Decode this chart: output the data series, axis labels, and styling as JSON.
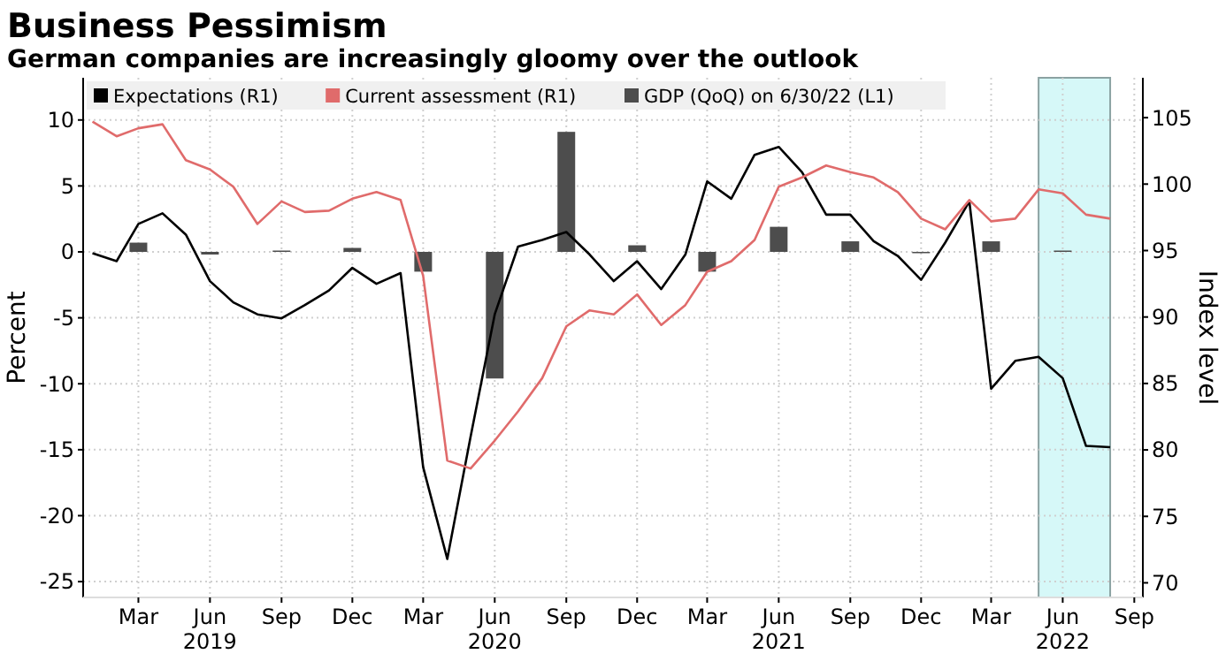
{
  "chart_data": {
    "type": "line",
    "title": "Business Pessimism",
    "subtitle": "German companies are increasingly gloomy over the outlook",
    "ylabel": "Percent",
    "y2label": "Index level",
    "x": [
      "2019-01-01",
      "2019-02-01",
      "2019-03-01",
      "2019-04-01",
      "2019-05-01",
      "2019-06-01",
      "2019-07-01",
      "2019-08-01",
      "2019-09-01",
      "2019-10-01",
      "2019-11-01",
      "2019-12-01",
      "2020-01-01",
      "2020-02-01",
      "2020-03-01",
      "2020-04-01",
      "2020-05-01",
      "2020-06-01",
      "2020-07-01",
      "2020-08-01",
      "2020-09-01",
      "2020-10-01",
      "2020-11-01",
      "2020-12-01",
      "2021-01-01",
      "2021-02-01",
      "2021-03-01",
      "2021-04-01",
      "2021-05-01",
      "2021-06-01",
      "2021-07-01",
      "2021-08-01",
      "2021-09-01",
      "2021-10-01",
      "2021-11-01",
      "2021-12-01",
      "2022-01-01",
      "2022-02-01",
      "2022-03-01",
      "2022-04-01",
      "2022-05-01",
      "2022-06-01",
      "2022-07-01",
      "2022-08-01"
    ],
    "series": [
      {
        "name": "Expectations (R1)",
        "color": "#000000",
        "axis": "y2",
        "values": [
          94.8,
          94.2,
          97.0,
          97.8,
          96.2,
          92.7,
          91.1,
          90.2,
          89.9,
          90.9,
          92.0,
          93.7,
          92.5,
          93.3,
          78.7,
          71.8,
          81.0,
          90.2,
          95.3,
          95.8,
          96.4,
          94.7,
          92.7,
          94.2,
          92.1,
          94.7,
          100.2,
          98.9,
          102.2,
          102.8,
          100.9,
          97.7,
          97.7,
          95.7,
          94.6,
          92.8,
          95.6,
          98.7,
          84.6,
          86.7,
          87.0,
          85.4,
          80.3,
          80.2
        ]
      },
      {
        "name": "Current assessment (R1)",
        "color": "#e06b6b",
        "axis": "y2",
        "values": [
          104.7,
          103.6,
          104.2,
          104.5,
          101.8,
          101.1,
          99.8,
          97.0,
          98.7,
          97.9,
          98.0,
          98.9,
          99.4,
          98.8,
          93.1,
          79.2,
          78.6,
          80.7,
          82.9,
          85.4,
          89.3,
          90.5,
          90.2,
          91.7,
          89.4,
          90.9,
          93.4,
          94.2,
          95.8,
          99.8,
          100.5,
          101.4,
          100.9,
          100.5,
          99.4,
          97.4,
          96.6,
          98.8,
          97.2,
          97.4,
          99.6,
          99.3,
          97.7,
          97.4
        ]
      },
      {
        "name": "GDP (QoQ) on 6/30/22 (L1)",
        "type": "bar",
        "color": "#4d4d4d",
        "x": [
          "2019-03-01",
          "2019-06-01",
          "2019-09-01",
          "2019-12-01",
          "2020-03-01",
          "2020-06-01",
          "2020-09-01",
          "2020-12-01",
          "2021-03-01",
          "2021-06-01",
          "2021-09-01",
          "2021-12-01",
          "2022-03-01",
          "2022-06-01"
        ],
        "values": [
          0.7,
          -0.2,
          0.1,
          0.3,
          -1.5,
          -9.6,
          9.1,
          0.5,
          -1.5,
          1.9,
          0.8,
          -0.1,
          0.8,
          0.1
        ]
      }
    ],
    "xlim": [
      "2018-12-20",
      "2022-09-12"
    ],
    "xticks": [
      {
        "value": "2019-03-01",
        "label": "Mar"
      },
      {
        "value": "2019-06-01",
        "label": "Jun\n2019"
      },
      {
        "value": "2019-09-01",
        "label": "Sep"
      },
      {
        "value": "2019-12-01",
        "label": "Dec"
      },
      {
        "value": "2020-03-01",
        "label": "Mar"
      },
      {
        "value": "2020-06-01",
        "label": "Jun\n2020"
      },
      {
        "value": "2020-09-01",
        "label": "Sep"
      },
      {
        "value": "2020-12-01",
        "label": "Dec"
      },
      {
        "value": "2021-03-01",
        "label": "Mar"
      },
      {
        "value": "2021-06-01",
        "label": "Jun\n2021"
      },
      {
        "value": "2021-09-01",
        "label": "Sep"
      },
      {
        "value": "2021-12-01",
        "label": "Dec"
      },
      {
        "value": "2022-03-01",
        "label": "Mar"
      },
      {
        "value": "2022-06-01",
        "label": "Jun\n2022"
      },
      {
        "value": "2022-09-01",
        "label": "Sep"
      }
    ],
    "ylim": [
      -26.2,
      13.2
    ],
    "yticks": [
      -25,
      -20,
      -15,
      -10,
      -5,
      0,
      5,
      10
    ],
    "y2lim": [
      68.9,
      108
    ],
    "y2ticks": [
      70,
      75,
      80,
      85,
      90,
      95,
      100,
      105
    ],
    "bands": [
      {
        "axis": "x",
        "from": "2022-05-01",
        "to": "2022-08-01",
        "color": "#d6f8f8"
      }
    ],
    "grid": true,
    "legend": "top left"
  }
}
